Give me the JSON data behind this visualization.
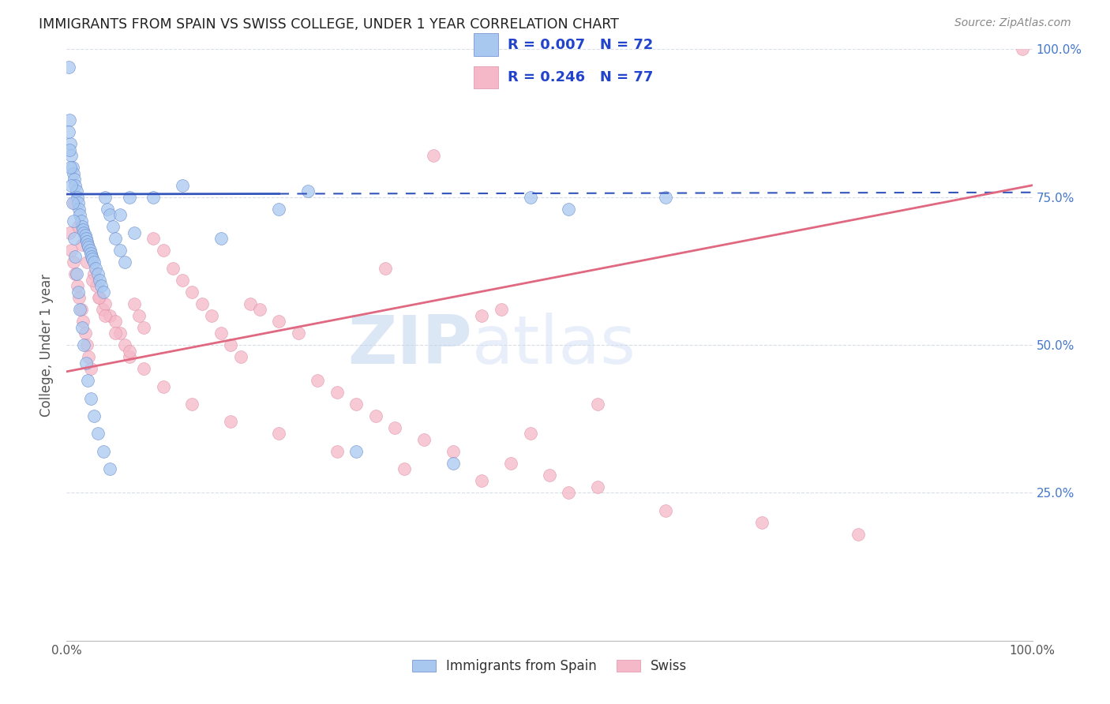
{
  "title": "IMMIGRANTS FROM SPAIN VS SWISS COLLEGE, UNDER 1 YEAR CORRELATION CHART",
  "source": "Source: ZipAtlas.com",
  "ylabel": "College, Under 1 year",
  "xlim": [
    0.0,
    1.0
  ],
  "ylim": [
    0.0,
    1.0
  ],
  "ytick_positions": [
    0.0,
    0.25,
    0.5,
    0.75,
    1.0
  ],
  "ytick_labels_right": [
    "",
    "25.0%",
    "50.0%",
    "75.0%",
    "100.0%"
  ],
  "background_color": "#ffffff",
  "grid_color": "#d8dde8",
  "legend_series1": "Immigrants from Spain",
  "legend_series2": "Swiss",
  "color_blue": "#a8c8f0",
  "color_pink": "#f5b8c8",
  "line_color_blue": "#3355bb",
  "line_color_pink": "#e06880",
  "blue_line_y0": 0.755,
  "blue_line_y1": 0.758,
  "pink_line_y0": 0.455,
  "pink_line_y1": 0.77,
  "blue_x": [
    0.002,
    0.003,
    0.004,
    0.005,
    0.006,
    0.007,
    0.008,
    0.009,
    0.01,
    0.011,
    0.012,
    0.013,
    0.014,
    0.015,
    0.016,
    0.017,
    0.018,
    0.019,
    0.02,
    0.021,
    0.022,
    0.023,
    0.024,
    0.025,
    0.026,
    0.027,
    0.028,
    0.03,
    0.032,
    0.034,
    0.036,
    0.038,
    0.04,
    0.042,
    0.045,
    0.048,
    0.05,
    0.055,
    0.06,
    0.065,
    0.002,
    0.003,
    0.004,
    0.005,
    0.006,
    0.007,
    0.008,
    0.009,
    0.01,
    0.012,
    0.014,
    0.016,
    0.018,
    0.02,
    0.022,
    0.025,
    0.028,
    0.032,
    0.038,
    0.045,
    0.055,
    0.07,
    0.09,
    0.12,
    0.16,
    0.22,
    0.3,
    0.4,
    0.52,
    0.62,
    0.25,
    0.48
  ],
  "blue_y": [
    0.97,
    0.88,
    0.84,
    0.82,
    0.8,
    0.79,
    0.78,
    0.77,
    0.76,
    0.75,
    0.74,
    0.73,
    0.72,
    0.71,
    0.7,
    0.695,
    0.69,
    0.685,
    0.68,
    0.675,
    0.67,
    0.665,
    0.66,
    0.655,
    0.65,
    0.645,
    0.64,
    0.63,
    0.62,
    0.61,
    0.6,
    0.59,
    0.75,
    0.73,
    0.72,
    0.7,
    0.68,
    0.66,
    0.64,
    0.75,
    0.86,
    0.83,
    0.8,
    0.77,
    0.74,
    0.71,
    0.68,
    0.65,
    0.62,
    0.59,
    0.56,
    0.53,
    0.5,
    0.47,
    0.44,
    0.41,
    0.38,
    0.35,
    0.32,
    0.29,
    0.72,
    0.69,
    0.75,
    0.77,
    0.68,
    0.73,
    0.32,
    0.3,
    0.73,
    0.75,
    0.76,
    0.75
  ],
  "pink_x": [
    0.003,
    0.005,
    0.007,
    0.009,
    0.011,
    0.013,
    0.015,
    0.017,
    0.019,
    0.021,
    0.023,
    0.025,
    0.028,
    0.031,
    0.034,
    0.037,
    0.04,
    0.045,
    0.05,
    0.055,
    0.06,
    0.065,
    0.07,
    0.075,
    0.08,
    0.09,
    0.1,
    0.11,
    0.12,
    0.13,
    0.14,
    0.15,
    0.16,
    0.17,
    0.18,
    0.19,
    0.2,
    0.22,
    0.24,
    0.26,
    0.28,
    0.3,
    0.32,
    0.34,
    0.37,
    0.4,
    0.43,
    0.46,
    0.5,
    0.55,
    0.008,
    0.012,
    0.016,
    0.021,
    0.027,
    0.033,
    0.04,
    0.05,
    0.065,
    0.08,
    0.1,
    0.13,
    0.17,
    0.22,
    0.28,
    0.35,
    0.43,
    0.52,
    0.62,
    0.72,
    0.82,
    0.33,
    0.38,
    0.45,
    0.48,
    0.55,
    0.99
  ],
  "pink_y": [
    0.69,
    0.66,
    0.64,
    0.62,
    0.6,
    0.58,
    0.56,
    0.54,
    0.52,
    0.5,
    0.48,
    0.46,
    0.62,
    0.6,
    0.58,
    0.56,
    0.57,
    0.55,
    0.54,
    0.52,
    0.5,
    0.48,
    0.57,
    0.55,
    0.53,
    0.68,
    0.66,
    0.63,
    0.61,
    0.59,
    0.57,
    0.55,
    0.52,
    0.5,
    0.48,
    0.57,
    0.56,
    0.54,
    0.52,
    0.44,
    0.42,
    0.4,
    0.38,
    0.36,
    0.34,
    0.32,
    0.55,
    0.3,
    0.28,
    0.4,
    0.74,
    0.7,
    0.67,
    0.64,
    0.61,
    0.58,
    0.55,
    0.52,
    0.49,
    0.46,
    0.43,
    0.4,
    0.37,
    0.35,
    0.32,
    0.29,
    0.27,
    0.25,
    0.22,
    0.2,
    0.18,
    0.63,
    0.82,
    0.56,
    0.35,
    0.26,
    1.0
  ]
}
